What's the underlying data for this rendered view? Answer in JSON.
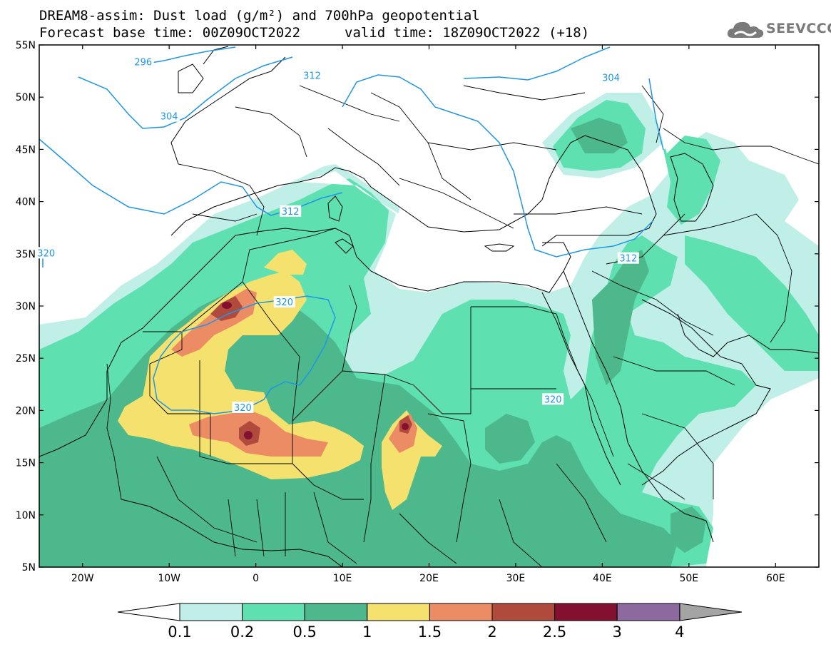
{
  "title_line1": "DREAM8-assim: Dust load (g/m²) and 700hPa geopotential",
  "title_line2": "Forecast base time: 00Z09OCT2022",
  "title_valid": "valid time: 18Z09OCT2022 (+18)",
  "logo_text": "SEEVCCC",
  "logo_icon": "cloud-logo-icon",
  "lat_labels": [
    "55N",
    "50N",
    "45N",
    "40N",
    "35N",
    "30N",
    "25N",
    "20N",
    "15N",
    "10N",
    "5N"
  ],
  "lat_values": [
    55,
    50,
    45,
    40,
    35,
    30,
    25,
    20,
    15,
    10,
    5
  ],
  "lon_labels": [
    "20W",
    "10W",
    "0",
    "10E",
    "20E",
    "30E",
    "40E",
    "50E",
    "60E"
  ],
  "lon_values": [
    -20,
    -10,
    0,
    10,
    20,
    30,
    40,
    50,
    60
  ],
  "extent": {
    "lon_min": -25,
    "lon_max": 65,
    "lat_min": 5,
    "lat_max": 55
  },
  "contour_labels": [
    {
      "text": "296",
      "lon": -13,
      "lat": 53.4
    },
    {
      "text": "304",
      "lon": -10,
      "lat": 48.2
    },
    {
      "text": "312",
      "lon": 6.5,
      "lat": 52.1
    },
    {
      "text": "304",
      "lon": 41,
      "lat": 51.9
    },
    {
      "text": "312",
      "lon": 4,
      "lat": 39.1
    },
    {
      "text": "312",
      "lon": 43,
      "lat": 34.6
    },
    {
      "text": "320",
      "lon": 3.3,
      "lat": 30.4
    },
    {
      "text": "320",
      "lon": -1.5,
      "lat": 20.3
    },
    {
      "text": "320",
      "lon": 34.3,
      "lat": 21.1
    },
    {
      "text": "320",
      "lon": -24.2,
      "lat": 35.1
    }
  ],
  "colorbar": {
    "labels": [
      "0.1",
      "0.2",
      "0.5",
      "1",
      "1.5",
      "2",
      "2.5",
      "3",
      "4"
    ],
    "colors": [
      "#c0efe8",
      "#5fe0b0",
      "#4db88c",
      "#f5e16e",
      "#ec8c64",
      "#b04a3c",
      "#84102f",
      "#8c6aa0"
    ],
    "under_color": "#ffffff",
    "over_color": "#a4a4a4"
  },
  "colors": {
    "geopotential": "#1e96e6",
    "borders": "#000000",
    "dust_low": "#c0efe8",
    "dust_0_2": "#5fe0b0",
    "dust_0_5": "#4db88c",
    "dust_1": "#f5e16e",
    "dust_1_5": "#ec8c64",
    "dust_2": "#b04a3c",
    "dust_2_5": "#84102f"
  }
}
